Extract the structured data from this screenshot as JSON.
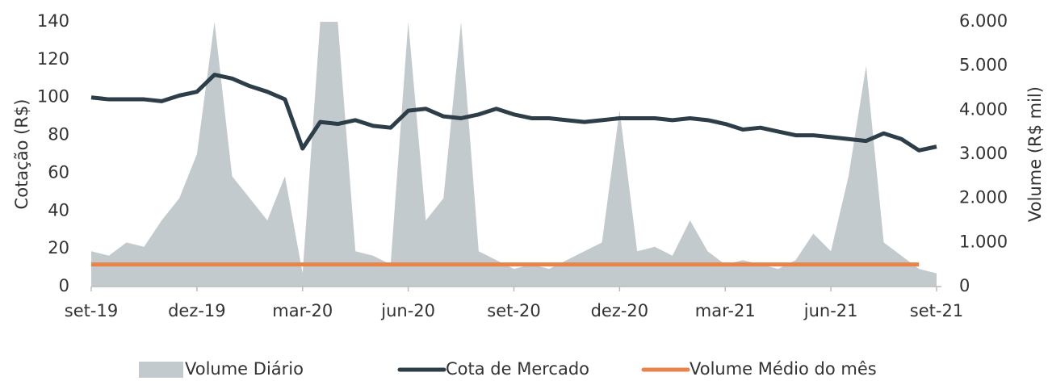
{
  "chart_data": {
    "type": "line",
    "y_label": "Cotação (R$)",
    "y2_label": "Volume (R$ mil)",
    "x": [
      0,
      0.5,
      1,
      1.5,
      2,
      2.5,
      3,
      3.5,
      4,
      4.5,
      5,
      5.5,
      6,
      6.5,
      7,
      7.5,
      8,
      8.5,
      9,
      9.5,
      10,
      10.5,
      11,
      11.5,
      12,
      12.5,
      13,
      13.5,
      14,
      14.5,
      15,
      15.5,
      16,
      16.5,
      17,
      17.5,
      18,
      18.5,
      19,
      19.5,
      20,
      20.5,
      21,
      21.5,
      22,
      22.5,
      23,
      23.5,
      24
    ],
    "xlim": [
      -0.1,
      24.4
    ],
    "xticks": [
      {
        "value": 0,
        "label": "set-19"
      },
      {
        "value": 3,
        "label": "dez-19"
      },
      {
        "value": 6,
        "label": "mar-20"
      },
      {
        "value": 9,
        "label": "jun-20"
      },
      {
        "value": 12,
        "label": "set-20"
      },
      {
        "value": 15,
        "label": "dez-20"
      },
      {
        "value": 18,
        "label": "mar-21"
      },
      {
        "value": 21,
        "label": "jun-21"
      },
      {
        "value": 24,
        "label": "set-21"
      }
    ],
    "ylim": [
      0,
      140
    ],
    "yticks": [
      0,
      20,
      40,
      60,
      80,
      100,
      120,
      140
    ],
    "y2lim": [
      0,
      6000
    ],
    "y2ticks": [
      {
        "value": 0,
        "label": "0"
      },
      {
        "value": 1000,
        "label": "1.000"
      },
      {
        "value": 2000,
        "label": "2.000"
      },
      {
        "value": 3000,
        "label": "3.000"
      },
      {
        "value": 4000,
        "label": "4.000"
      },
      {
        "value": 5000,
        "label": "5.000"
      },
      {
        "value": 6000,
        "label": "6.000"
      }
    ],
    "series": [
      {
        "name": "Volume Diário",
        "type": "area",
        "axis": "y2",
        "color": "#c2cace",
        "values": [
          800,
          700,
          1000,
          900,
          1500,
          2000,
          3000,
          6000,
          2500,
          2000,
          1500,
          2500,
          300,
          6000,
          6000,
          800,
          700,
          500,
          6000,
          1500,
          2000,
          6000,
          800,
          600,
          400,
          500,
          400,
          600,
          800,
          1000,
          4000,
          800,
          900,
          700,
          1500,
          800,
          500,
          600,
          500,
          400,
          600,
          1200,
          800,
          2500,
          5000,
          1000,
          700,
          400,
          300
        ]
      },
      {
        "name": "Cota de Mercado",
        "type": "line",
        "axis": "y",
        "color": "#2d3e48",
        "values": [
          100,
          99,
          99,
          99,
          98,
          101,
          103,
          112,
          110,
          106,
          103,
          99,
          73,
          87,
          86,
          88,
          85,
          84,
          93,
          94,
          90,
          89,
          91,
          94,
          91,
          89,
          89,
          88,
          87,
          88,
          89,
          89,
          89,
          88,
          89,
          88,
          86,
          83,
          84,
          82,
          80,
          80,
          79,
          78,
          77,
          81,
          78,
          72,
          74
        ]
      },
      {
        "name": "Volume Médio do mês",
        "type": "line",
        "axis": "y2",
        "color": "#e8844a",
        "values": [
          500,
          500,
          500,
          500,
          500,
          500,
          500,
          500,
          500,
          500,
          500,
          500,
          500,
          500,
          500,
          500,
          500,
          500,
          500,
          500,
          500,
          500,
          500,
          500,
          500,
          500,
          500,
          500,
          500,
          500,
          500,
          500,
          500,
          500,
          500,
          500,
          500,
          500,
          500,
          500,
          500,
          500,
          500,
          500,
          500,
          500,
          500,
          500,
          null
        ]
      }
    ]
  }
}
